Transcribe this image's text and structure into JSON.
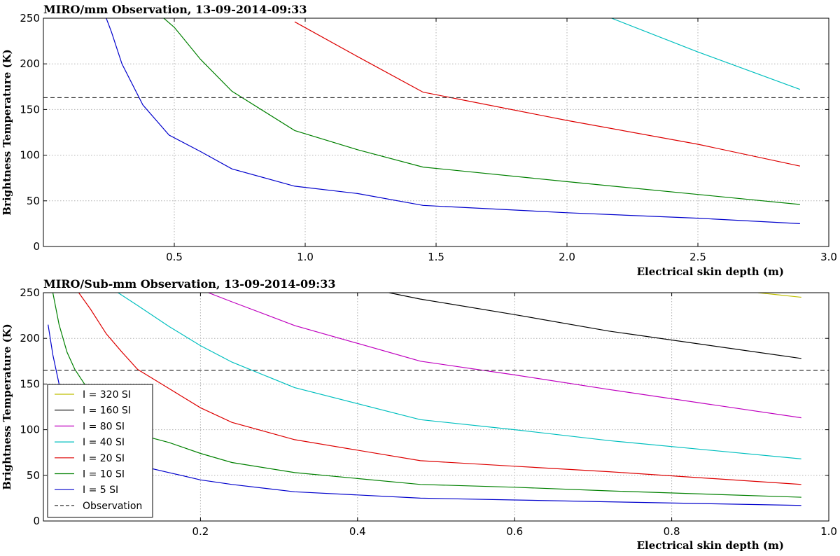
{
  "chart_data": [
    {
      "type": "line",
      "title": "MIRO/mm Observation, 13-09-2014-09:33",
      "xlabel": "Electrical skin depth (m)",
      "ylabel": "Brightness Temperature (K)",
      "xlim": [
        0.0,
        3.0
      ],
      "ylim": [
        0,
        250
      ],
      "xticks": [
        "0.5",
        "1.0",
        "1.5",
        "2.0",
        "2.5",
        "3.0"
      ],
      "yticks": [
        "0",
        "50",
        "100",
        "150",
        "200",
        "250"
      ],
      "grid": true,
      "observation": 163,
      "series": [
        {
          "key": "I5",
          "color": "#0000cc",
          "x": [
            0.24,
            0.26,
            0.3,
            0.38,
            0.48,
            0.6,
            0.72,
            0.96,
            1.2,
            1.45,
            2.0,
            2.5,
            2.89
          ],
          "y": [
            250,
            235,
            200,
            155,
            122,
            104,
            85,
            66,
            58,
            45,
            37,
            31,
            25
          ]
        },
        {
          "key": "I10",
          "color": "#008000",
          "x": [
            0.46,
            0.5,
            0.6,
            0.72,
            0.96,
            1.2,
            1.45,
            2.0,
            2.5,
            2.89
          ],
          "y": [
            250,
            240,
            205,
            170,
            127,
            106,
            87,
            71,
            57,
            46
          ]
        },
        {
          "key": "I20",
          "color": "#dd0000",
          "x": [
            0.96,
            1.2,
            1.45,
            2.0,
            2.5,
            2.89
          ],
          "y": [
            246,
            208,
            169,
            138,
            112,
            88
          ]
        },
        {
          "key": "I40",
          "color": "#00bfbf",
          "x": [
            2.17,
            2.5,
            2.89
          ],
          "y": [
            250,
            213,
            172
          ]
        }
      ]
    },
    {
      "type": "line",
      "title": "MIRO/Sub-mm Observation, 13-09-2014-09:33",
      "xlabel": "Electrical skin depth (m)",
      "ylabel": "Brightness Temperature (K)",
      "xlim": [
        0.0,
        1.0
      ],
      "ylim": [
        0,
        250
      ],
      "xticks": [
        "0.2",
        "0.4",
        "0.6",
        "0.8",
        "1.0"
      ],
      "yticks": [
        "0",
        "50",
        "100",
        "150",
        "200",
        "250"
      ],
      "grid": true,
      "observation": 165,
      "legend_position": "lower-left",
      "legend": [
        "I = 320 SI",
        "I = 160 SI",
        "I = 80 SI",
        "I = 40 SI",
        "I = 20 SI",
        "I = 10 SI",
        "I = 5 SI",
        "Observation"
      ],
      "series": [
        {
          "name": "I = 320 SI",
          "color": "#bfbf00",
          "x": [
            0.91,
            0.965
          ],
          "y": [
            250,
            245
          ]
        },
        {
          "name": "I = 160 SI",
          "color": "#000000",
          "x": [
            0.44,
            0.48,
            0.6,
            0.72,
            0.965
          ],
          "y": [
            250,
            243,
            226,
            208,
            178
          ]
        },
        {
          "name": "I = 80 SI",
          "color": "#bf00bf",
          "x": [
            0.21,
            0.24,
            0.32,
            0.48,
            0.6,
            0.72,
            0.965
          ],
          "y": [
            250,
            240,
            214,
            175,
            160,
            144,
            113
          ]
        },
        {
          "name": "I = 40 SI",
          "color": "#00bfbf",
          "x": [
            0.095,
            0.12,
            0.16,
            0.2,
            0.24,
            0.32,
            0.48,
            0.6,
            0.72,
            0.965
          ],
          "y": [
            250,
            236,
            213,
            192,
            174,
            146,
            111,
            100,
            88,
            68
          ]
        },
        {
          "name": "I = 20 SI",
          "color": "#dd0000",
          "x": [
            0.045,
            0.06,
            0.08,
            0.1,
            0.12,
            0.16,
            0.2,
            0.24,
            0.32,
            0.48,
            0.6,
            0.72,
            0.965
          ],
          "y": [
            250,
            232,
            205,
            185,
            166,
            145,
            124,
            108,
            89,
            66,
            60,
            54,
            40
          ]
        },
        {
          "name": "I = 10 SI",
          "color": "#008000",
          "x": [
            0.012,
            0.02,
            0.03,
            0.04,
            0.06,
            0.08,
            0.1,
            0.12,
            0.16,
            0.2,
            0.24,
            0.32,
            0.48,
            0.6,
            0.72,
            0.965
          ],
          "y": [
            250,
            215,
            185,
            166,
            140,
            118,
            105,
            95,
            86,
            74,
            64,
            53,
            40,
            37,
            33,
            26
          ]
        },
        {
          "name": "I = 5 SI",
          "color": "#0000cc",
          "x": [
            0.006,
            0.012,
            0.02,
            0.03,
            0.04,
            0.06,
            0.08,
            0.1,
            0.12,
            0.16,
            0.2,
            0.24,
            0.32,
            0.48,
            0.6,
            0.72,
            0.965
          ],
          "y": [
            215,
            182,
            150,
            128,
            112,
            92,
            78,
            68,
            61,
            53,
            45,
            40,
            32,
            25,
            23,
            21,
            17
          ]
        }
      ]
    }
  ]
}
